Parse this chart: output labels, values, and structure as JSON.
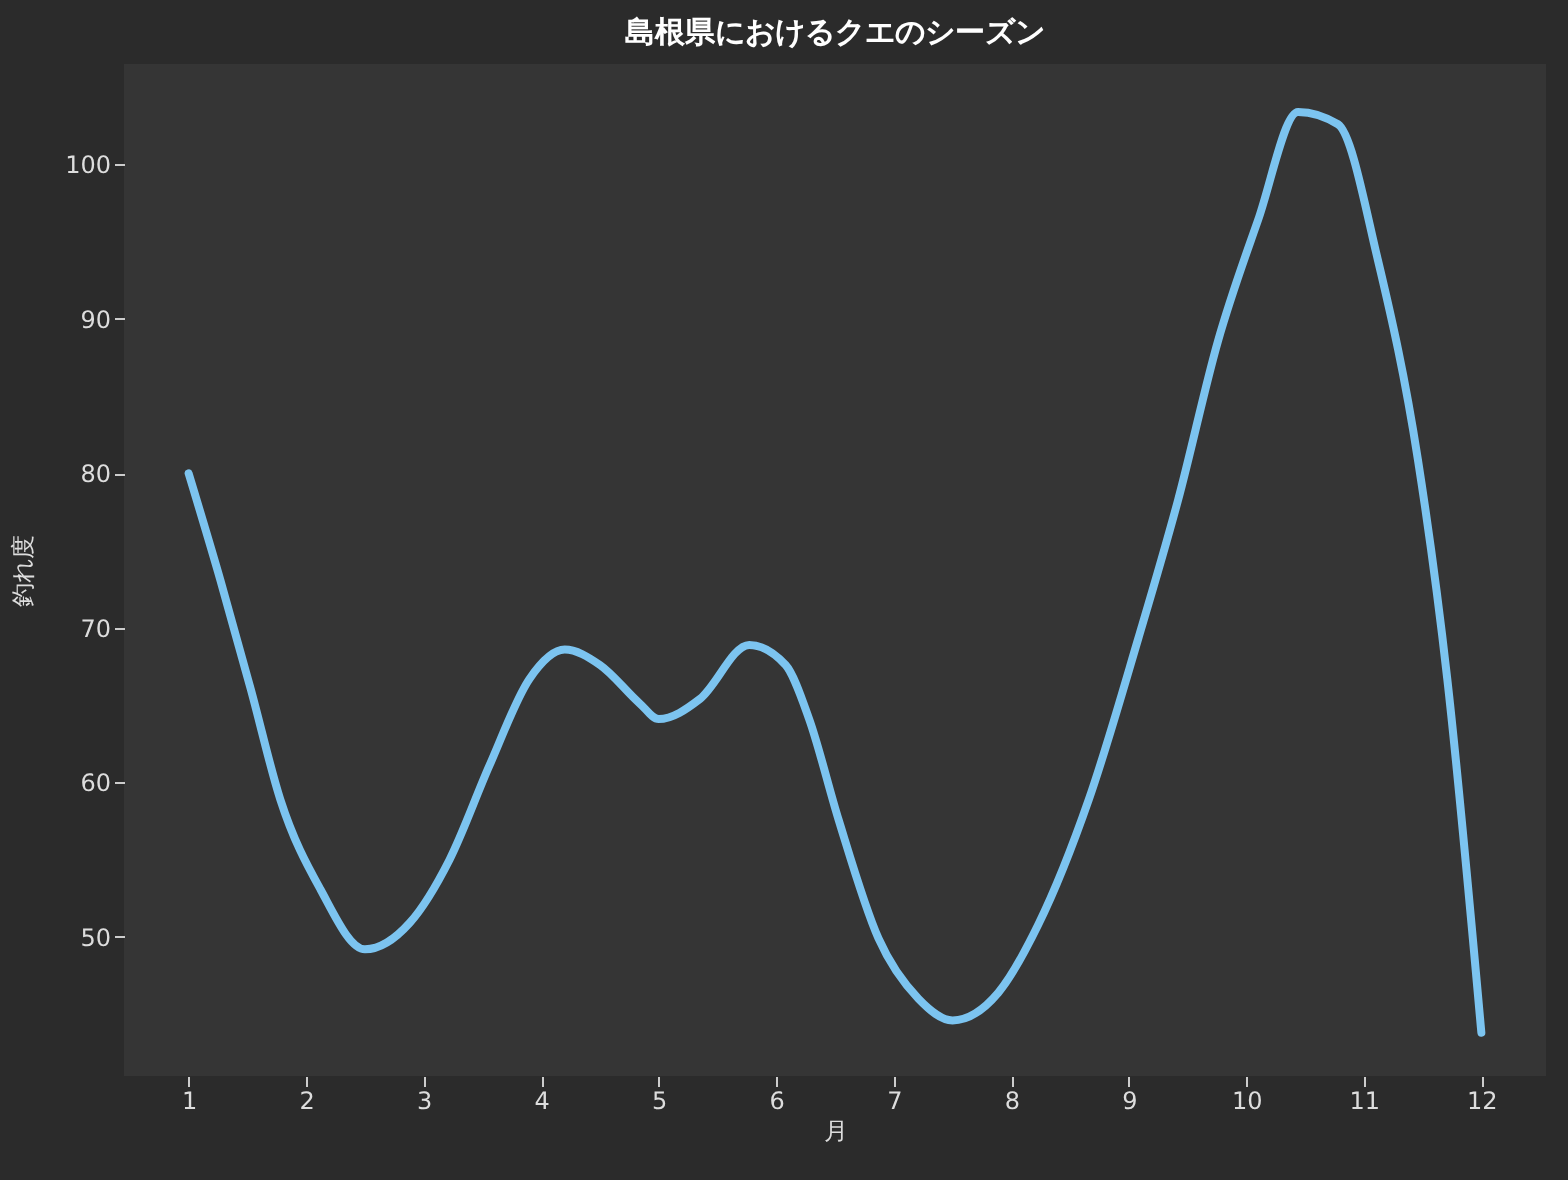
{
  "chart_data": {
    "type": "line",
    "title": "島根県におけるクエのシーズン",
    "xlabel": "月",
    "ylabel": "釣れ度",
    "x": [
      1,
      1.27,
      1.53,
      1.78,
      2.12,
      2.5,
      2.88,
      3.22,
      3.56,
      3.9,
      4.2,
      4.5,
      4.84,
      5,
      5.35,
      5.77,
      6.08,
      6.28,
      6.53,
      6.87,
      7.21,
      7.5,
      7.89,
      8.23,
      8.66,
      9.08,
      9.42,
      9.76,
      10.1,
      10.44,
      10.78,
      11.12,
      11.46,
      11.71,
      12
    ],
    "series": [
      {
        "color": "#7cc4f0",
        "values": [
          80,
          73.1,
          66,
          58.9,
          53.1,
          49.2,
          50.9,
          55,
          61.1,
          66.7,
          68.6,
          67.6,
          65.1,
          64.1,
          65.4,
          68.9,
          67.6,
          64.1,
          57.6,
          49.9,
          46,
          44.6,
          46.4,
          50.8,
          58.9,
          69.3,
          78.3,
          88.6,
          96.4,
          103.4,
          102.6,
          93.8,
          80.9,
          66.7,
          43.8
        ]
      }
    ],
    "xlim": [
      0.45,
      12.55
    ],
    "xticks": [
      1,
      2,
      3,
      4,
      5,
      6,
      7,
      8,
      9,
      10,
      11,
      12
    ],
    "ylim": [
      41,
      106.5
    ],
    "yticks": [
      50,
      60,
      70,
      80,
      90,
      100
    ],
    "grid": false,
    "marker": "none",
    "line_style": "solid"
  }
}
